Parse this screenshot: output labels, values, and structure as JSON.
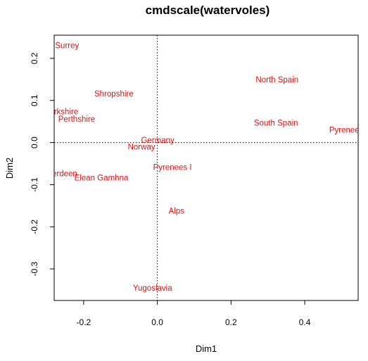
{
  "chart_data": {
    "type": "scatter",
    "title": "cmdscale(watervoles)",
    "xlabel": "Dim1",
    "ylabel": "Dim2",
    "xlim": [
      -0.28,
      0.545
    ],
    "ylim": [
      -0.375,
      0.255
    ],
    "xticks": [
      "-0.2",
      "0.0",
      "0.2",
      "0.4"
    ],
    "yticks": [
      "-0.3",
      "-0.2",
      "-0.1",
      "0.0",
      "0.1",
      "0.2"
    ],
    "xtick_values": [
      -0.2,
      0.0,
      0.2,
      0.4
    ],
    "ytick_values": [
      -0.3,
      -0.2,
      -0.1,
      0.0,
      0.1,
      0.2
    ],
    "reference_lines": {
      "x": 0,
      "y": 0,
      "style": "dotted"
    },
    "label_color": "#dd1111",
    "points": [
      {
        "label": "Surrey",
        "x": -0.245,
        "y": 0.231
      },
      {
        "label": "Shropshire",
        "x": -0.118,
        "y": 0.116
      },
      {
        "label": "Yorkshire",
        "x": -0.26,
        "y": 0.074
      },
      {
        "label": "Perthshire",
        "x": -0.219,
        "y": 0.056
      },
      {
        "label": "Aberdeen",
        "x": -0.265,
        "y": -0.073
      },
      {
        "label": "Elean Gamhna",
        "x": -0.152,
        "y": -0.083
      },
      {
        "label": "Germany",
        "x": 0.001,
        "y": 0.006
      },
      {
        "label": "Norway",
        "x": -0.043,
        "y": -0.01
      },
      {
        "label": "Pyrenees I",
        "x": 0.041,
        "y": -0.058
      },
      {
        "label": "Alps",
        "x": 0.052,
        "y": -0.162
      },
      {
        "label": "Yugoslavia",
        "x": -0.013,
        "y": -0.345
      },
      {
        "label": "North Spain",
        "x": 0.325,
        "y": 0.15
      },
      {
        "label": "South Spain",
        "x": 0.322,
        "y": 0.047
      },
      {
        "label": "Pyrenees II",
        "x": 0.522,
        "y": 0.03
      }
    ]
  }
}
